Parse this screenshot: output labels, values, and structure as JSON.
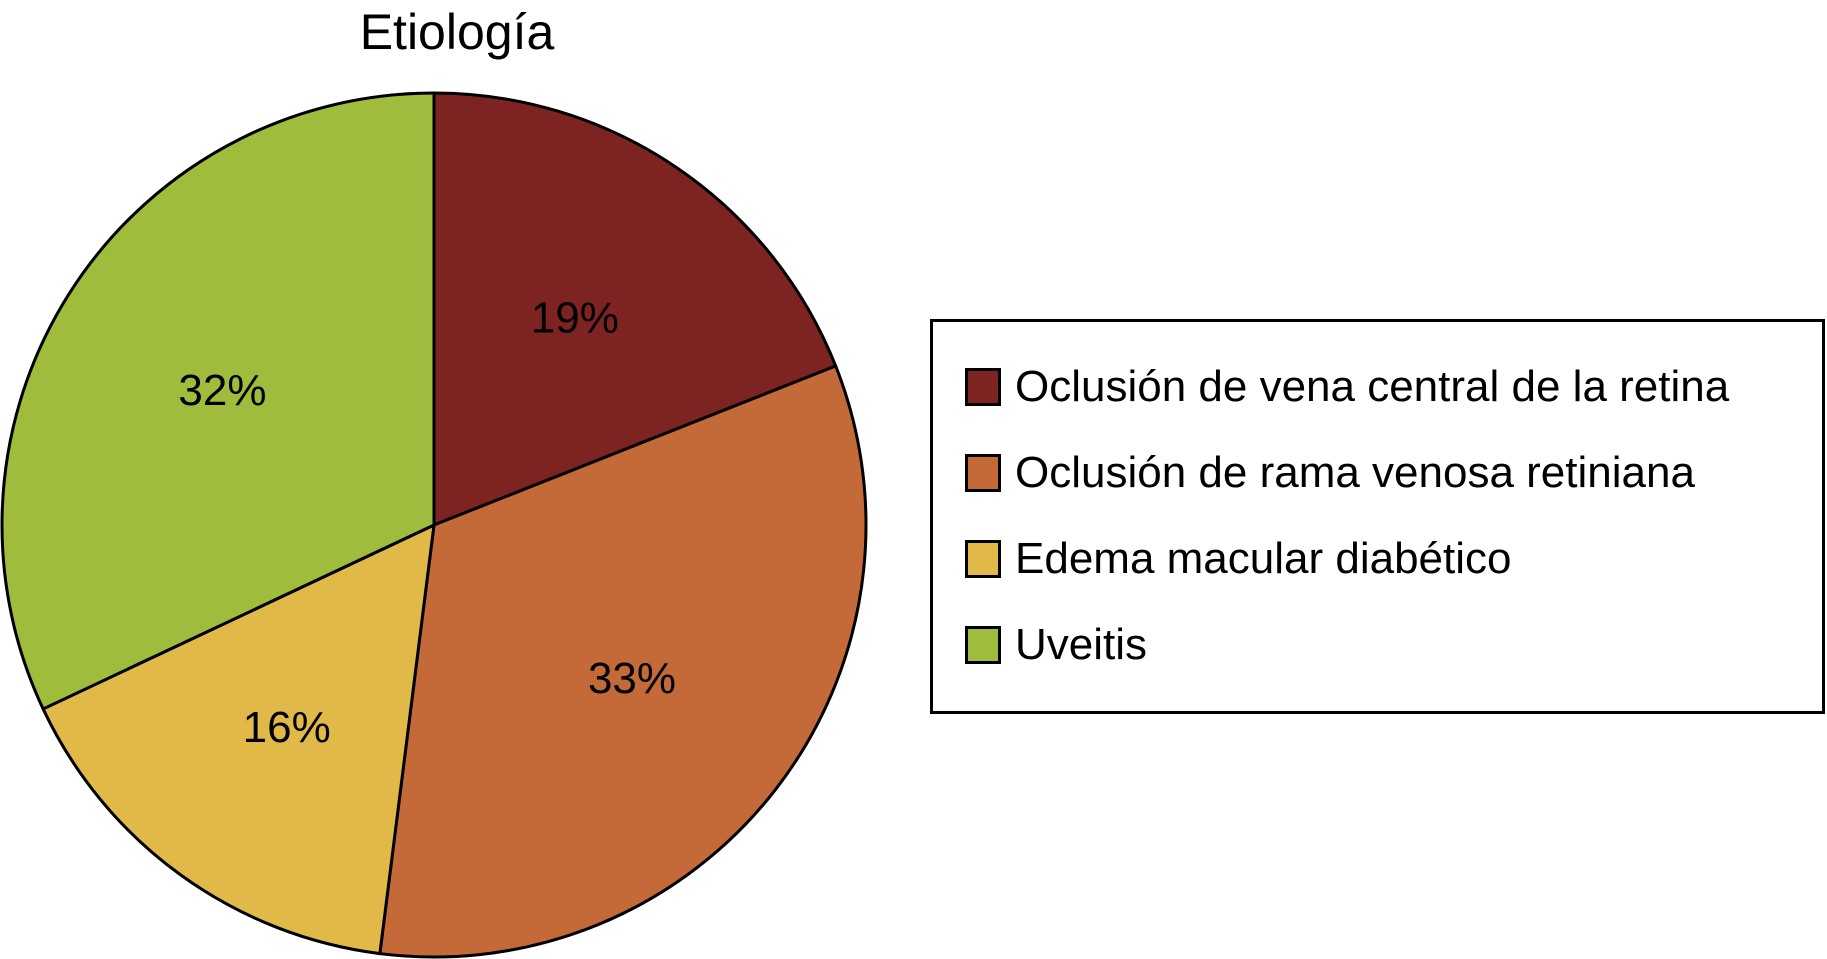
{
  "chart_data": {
    "type": "pie",
    "title": "Etiología",
    "categories": [
      "Oclusión de vena central de la retina",
      "Oclusión de rama venosa retiniana",
      "Edema macular diabético",
      "Uveitis"
    ],
    "values": [
      19,
      33,
      16,
      32
    ],
    "value_labels": [
      "19%",
      "33%",
      "16%",
      "32%"
    ],
    "colors": [
      "#7d2422",
      "#c46a38",
      "#e0b948",
      "#a0bc3c"
    ],
    "legend_position": "right",
    "start_angle": "12 o'clock",
    "direction": "clockwise"
  }
}
